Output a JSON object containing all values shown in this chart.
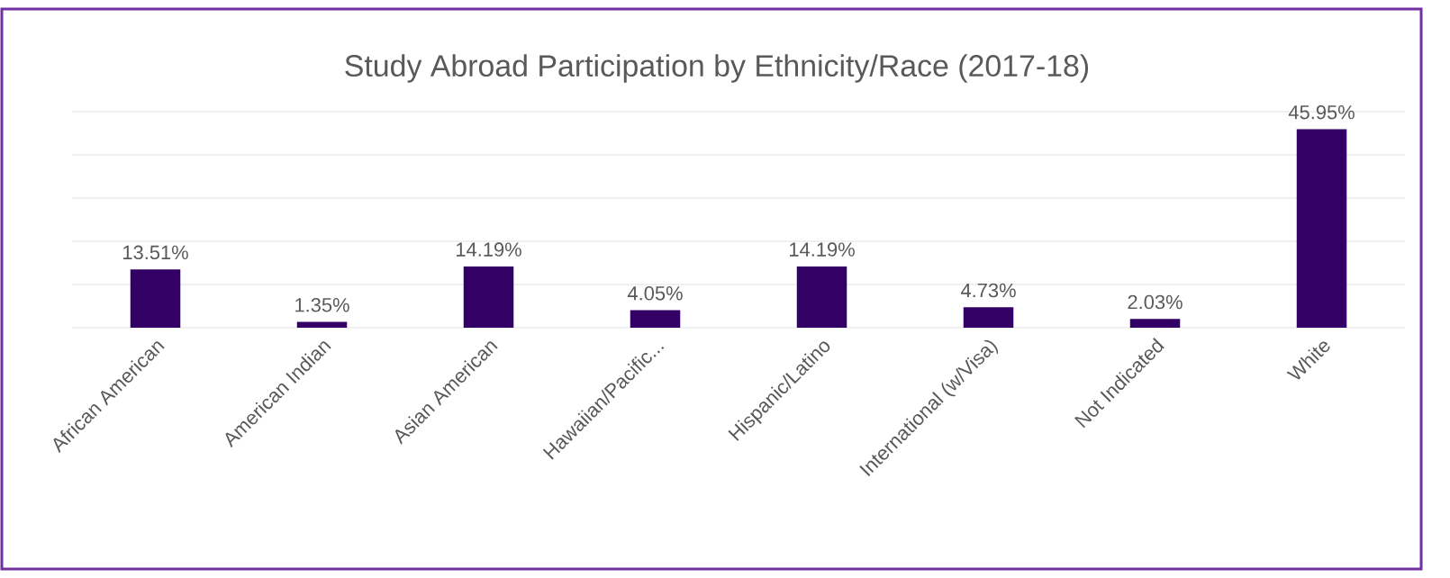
{
  "chart_data": {
    "type": "bar",
    "title": "Study Abroad Participation by Ethnicity/Race (2017-18)",
    "categories": [
      "African American",
      "American Indian",
      "Asian American",
      "Hawaiian/Pacific...",
      "Hispanic/Latino",
      "International (w/Visa)",
      "Not Indicated",
      "White"
    ],
    "values": [
      13.51,
      1.35,
      14.19,
      4.05,
      14.19,
      4.73,
      2.03,
      45.95
    ],
    "value_labels": [
      "13.51%",
      "1.35%",
      "14.19%",
      "4.05%",
      "14.19%",
      "4.73%",
      "2.03%",
      "45.95%"
    ],
    "color": "#330066",
    "ylim": [
      0,
      50
    ],
    "yticks": [
      {
        "value": 0,
        "label": null
      },
      {
        "value": 10,
        "label": null
      },
      {
        "value": 20,
        "label": null
      },
      {
        "value": 30,
        "label": null
      },
      {
        "value": 40,
        "label": null
      },
      {
        "value": 50,
        "label": null
      }
    ],
    "tick_labels": "x",
    "grid": "y"
  }
}
